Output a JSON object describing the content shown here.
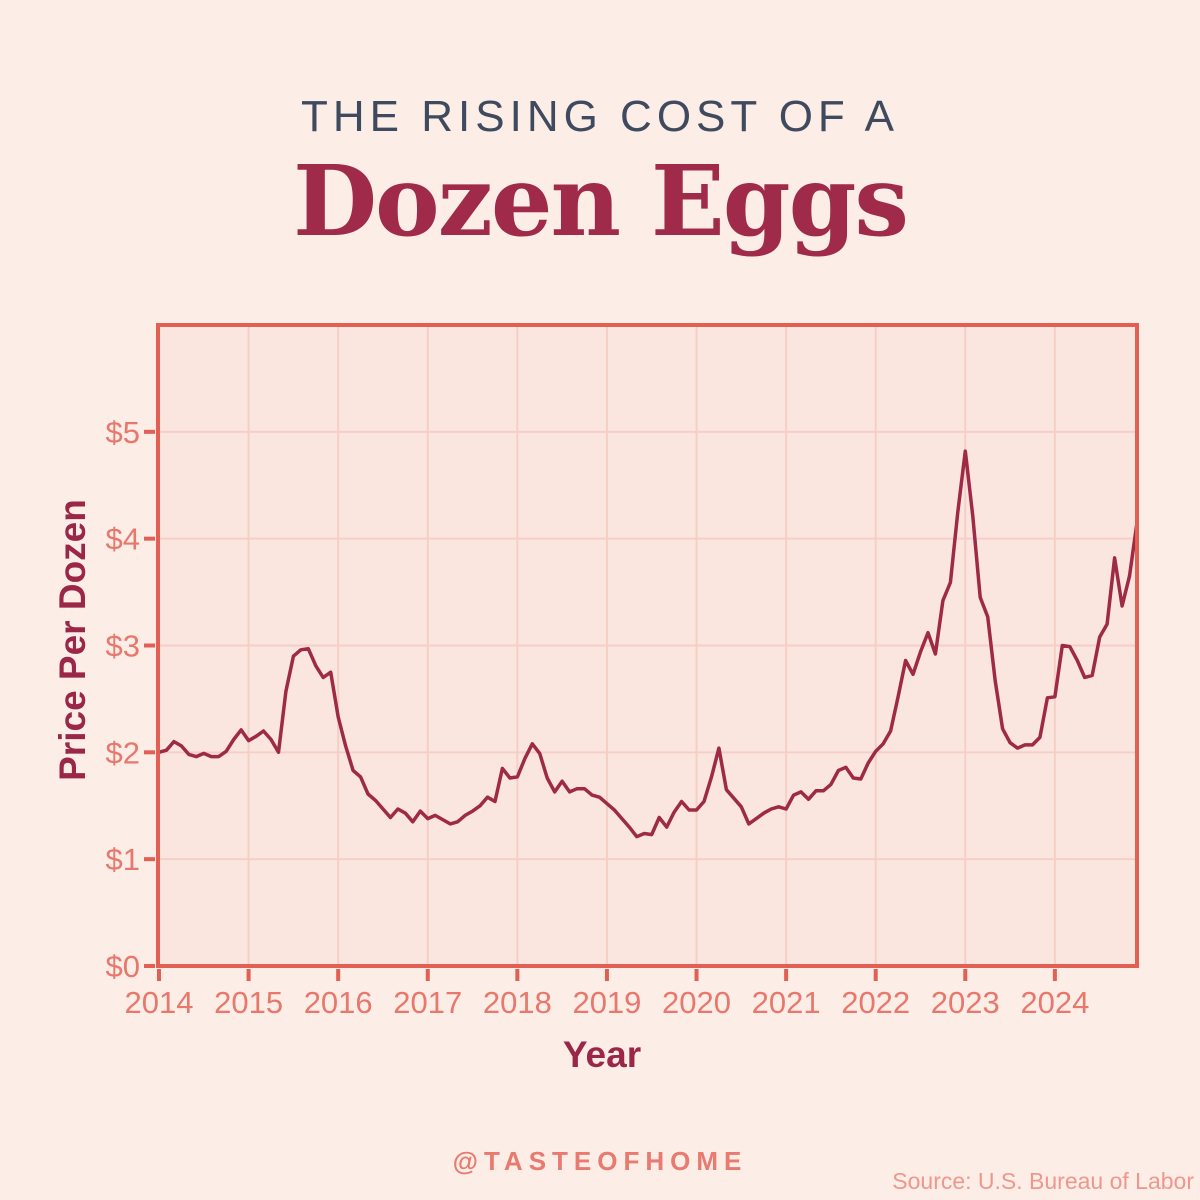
{
  "header": {
    "kicker": "THE RISING COST OF A",
    "title": "Dozen Eggs"
  },
  "footer": {
    "handle": "@TASTEOFHOME",
    "source": "Source: U.S. Bureau of Labor"
  },
  "colors": {
    "page_background": "#FCEDE7",
    "kicker_text": "#3F4A5E",
    "title_text": "#A02A49",
    "axis_title_text": "#9A2747",
    "handle_text": "#E87A6F",
    "source_text": "#EE978C"
  },
  "chart_data": {
    "type": "line",
    "title": "The Rising Cost of a Dozen Eggs",
    "xlabel": "Year",
    "ylabel": "Price Per Dozen",
    "x_ticks": [
      "2014",
      "2015",
      "2016",
      "2017",
      "2018",
      "2019",
      "2020",
      "2021",
      "2022",
      "2023",
      "2024"
    ],
    "y_ticks": [
      "$0",
      "$1",
      "$2",
      "$3",
      "$4",
      "$5"
    ],
    "ylim": [
      0,
      6
    ],
    "xlim": [
      "2014-01",
      "2024-12"
    ],
    "frequency": "monthly",
    "grid": true,
    "legend": "none",
    "series": [
      {
        "name": "Price Per Dozen",
        "start": "2014-01",
        "values": [
          2.0,
          2.02,
          2.1,
          2.06,
          1.98,
          1.96,
          1.99,
          1.96,
          1.96,
          2.01,
          2.12,
          2.21,
          2.11,
          2.15,
          2.2,
          2.12,
          2.0,
          2.57,
          2.9,
          2.96,
          2.97,
          2.81,
          2.7,
          2.75,
          2.33,
          2.06,
          1.83,
          1.77,
          1.61,
          1.55,
          1.47,
          1.39,
          1.47,
          1.43,
          1.35,
          1.45,
          1.38,
          1.41,
          1.37,
          1.33,
          1.35,
          1.41,
          1.45,
          1.5,
          1.58,
          1.54,
          1.85,
          1.76,
          1.77,
          1.94,
          2.08,
          1.99,
          1.76,
          1.63,
          1.73,
          1.63,
          1.66,
          1.66,
          1.6,
          1.58,
          1.52,
          1.46,
          1.38,
          1.3,
          1.21,
          1.24,
          1.23,
          1.39,
          1.3,
          1.44,
          1.54,
          1.46,
          1.46,
          1.54,
          1.77,
          2.04,
          1.65,
          1.57,
          1.49,
          1.33,
          1.38,
          1.43,
          1.47,
          1.49,
          1.47,
          1.6,
          1.63,
          1.56,
          1.64,
          1.64,
          1.7,
          1.83,
          1.86,
          1.76,
          1.75,
          1.9,
          2.01,
          2.08,
          2.2,
          2.52,
          2.86,
          2.73,
          2.94,
          3.12,
          2.92,
          3.42,
          3.59,
          4.25,
          4.82,
          4.21,
          3.45,
          3.27,
          2.67,
          2.22,
          2.09,
          2.04,
          2.07,
          2.07,
          2.14,
          2.51,
          2.52,
          3.0,
          2.99,
          2.86,
          2.7,
          2.72,
          3.08,
          3.2,
          3.82,
          3.37,
          3.65,
          4.15
        ]
      }
    ],
    "colors": {
      "line": "#9E2A45",
      "axis": "#E25F54",
      "grid": "#F5CFC5",
      "tick_label": "#E8776C",
      "plot_bg": "#FBE6DF"
    }
  }
}
